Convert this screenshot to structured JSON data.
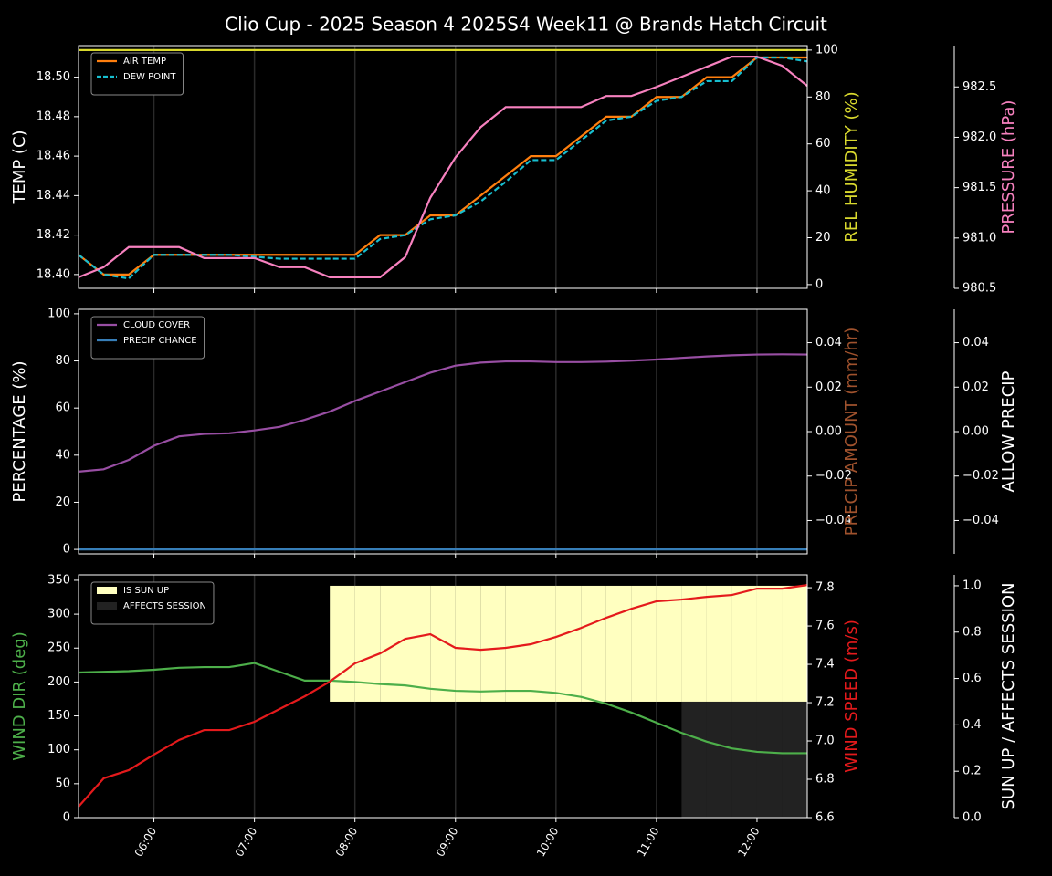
{
  "chart_data": [
    {
      "type": "line",
      "title": "Clio Cup - 2025 Season 4 2025S4 Week11 @ Brands Hatch Circuit",
      "ylabel": "TEMP (C)",
      "ylim": [
        18.393,
        18.516
      ],
      "yticks": [
        {
          "value": 18.4,
          "label": "18.40"
        },
        {
          "value": 18.42,
          "label": "18.42"
        },
        {
          "value": 18.44,
          "label": "18.44"
        },
        {
          "value": 18.46,
          "label": "18.46"
        },
        {
          "value": 18.48,
          "label": "18.48"
        },
        {
          "value": 18.5,
          "label": "18.50"
        }
      ],
      "y2label": "REL HUMIDITY (%)",
      "y2label_color": "#d9d92e",
      "y2lim": [
        -1.6,
        101.9
      ],
      "y2ticks": [
        0,
        20,
        40,
        60,
        80,
        100
      ],
      "y3label": "PRESSURE (hPa)",
      "y3label_color": "#f781bf",
      "y3lim": [
        980.5,
        982.91
      ],
      "y3ticks": [
        980.5,
        {
          "value": 981,
          "label": "981.0"
        },
        981.5,
        {
          "value": 982,
          "label": "982.0"
        },
        982.5
      ],
      "legend": "upper left",
      "series": [
        {
          "name": "AIR TEMP",
          "color": "#ff7f0e",
          "values": [
            18.41,
            18.4,
            18.4,
            18.41,
            18.41,
            18.41,
            18.41,
            18.41,
            18.41,
            18.41,
            18.41,
            18.41,
            18.42,
            18.42,
            18.43,
            18.43,
            18.44,
            18.45,
            18.46,
            18.46,
            18.47,
            18.48,
            18.48,
            18.49,
            18.49,
            18.5,
            18.5,
            18.51,
            18.51,
            18.51
          ]
        },
        {
          "name": "DEW POINT",
          "color": "#17becf",
          "dashed": true,
          "values": [
            18.41,
            18.4,
            18.398,
            18.41,
            18.41,
            18.41,
            18.41,
            18.409,
            18.408,
            18.408,
            18.408,
            18.408,
            18.418,
            18.42,
            18.428,
            18.43,
            18.437,
            18.447,
            18.458,
            18.458,
            18.468,
            18.478,
            18.48,
            18.488,
            18.49,
            18.498,
            18.498,
            18.51,
            18.51,
            18.508
          ]
        },
        {
          "axis": "y2",
          "color": "#d9d92e",
          "values": [
            100,
            100,
            100,
            100,
            100,
            100,
            100,
            100,
            100,
            100,
            100,
            100,
            100,
            100,
            100,
            100,
            100,
            100,
            100,
            100,
            100,
            100,
            100,
            100,
            100,
            100,
            100,
            100,
            100,
            100
          ]
        },
        {
          "axis": "y3",
          "color": "#f781bf",
          "values": [
            980.61,
            980.71,
            980.91,
            980.91,
            980.91,
            980.8,
            980.8,
            980.8,
            980.71,
            980.71,
            980.61,
            980.61,
            980.61,
            980.81,
            981.4,
            981.8,
            982.1,
            982.3,
            982.3,
            982.3,
            982.3,
            982.41,
            982.41,
            982.5,
            982.6,
            982.7,
            982.8,
            982.8,
            982.71,
            982.51
          ]
        }
      ]
    },
    {
      "type": "line",
      "ylabel": "PERCENTAGE (%)",
      "ylim": [
        -1.9,
        101.9
      ],
      "yticks": [
        0,
        20,
        40,
        60,
        80,
        100
      ],
      "y2label": "PRECIP AMOUNT (mm/hr)",
      "y2label_color": "#a0522d",
      "y2lim": [
        -0.055,
        0.055
      ],
      "y2ticks": [
        {
          "value": -0.04,
          "label": "−0.04"
        },
        {
          "value": -0.02,
          "label": "−0.02"
        },
        {
          "value": 0,
          "label": "0.00"
        },
        0.02,
        0.04
      ],
      "y3label": "ALLOW PRECIP",
      "y3lim": [
        -0.055,
        0.055
      ],
      "y3ticks": [
        {
          "value": -0.04,
          "label": "−0.04"
        },
        {
          "value": -0.02,
          "label": "−0.02"
        },
        {
          "value": 0,
          "label": "0.00"
        },
        0.02,
        0.04
      ],
      "legend": "upper left",
      "series": [
        {
          "name": "CLOUD COVER",
          "color": "#984ea3",
          "values": [
            33,
            34,
            38,
            44,
            48,
            49,
            49.3,
            50.5,
            52,
            55,
            58.5,
            63,
            67,
            71,
            75,
            78,
            79.3,
            79.8,
            79.8,
            79.5,
            79.5,
            79.7,
            80.1,
            80.6,
            81.3,
            81.9,
            82.4,
            82.7,
            82.8,
            82.7
          ]
        },
        {
          "name": "PRECIP CHANCE",
          "color": "#377eb8",
          "values": [
            0,
            0,
            0,
            0,
            0,
            0,
            0,
            0,
            0,
            0,
            0,
            0,
            0,
            0,
            0,
            0,
            0,
            0,
            0,
            0,
            0,
            0,
            0,
            0,
            0,
            0,
            0,
            0,
            0,
            0
          ]
        }
      ]
    },
    {
      "type": "line",
      "categories": [
        null,
        null,
        null,
        "06:00",
        null,
        null,
        null,
        "07:00",
        null,
        null,
        null,
        "08:00",
        null,
        null,
        null,
        "09:00",
        null,
        null,
        null,
        "10:00",
        null,
        null,
        null,
        "11:00",
        null,
        null,
        null,
        "12:00",
        null,
        null
      ],
      "ylabel": "WIND DIR (deg)",
      "ylabel_color": "#4daf4a",
      "ylim": [
        0,
        358
      ],
      "yticks": [
        0,
        50,
        100,
        150,
        200,
        250,
        300,
        350
      ],
      "y2label": "WIND SPEED (m/s)",
      "y2label_color": "#e41a1c",
      "y2lim": [
        6.6,
        7.867
      ],
      "y2ticks": [
        6.6,
        6.8,
        {
          "value": 7,
          "label": "7.0"
        },
        7.2,
        7.4,
        7.6,
        7.8
      ],
      "y3label": "SUN UP / AFFECTS SESSION",
      "y3lim": [
        0,
        1.047
      ],
      "y3ticks": [
        {
          "value": 0,
          "label": "0.0"
        },
        0.2,
        0.4,
        0.6,
        0.8,
        {
          "value": 1,
          "label": "1.0"
        }
      ],
      "legend": "upper left",
      "series": [
        {
          "name": "IS SUN UP",
          "type": "fill",
          "axis": "y3",
          "color": "#ffffc0",
          "values": [
            0,
            0,
            0,
            0,
            0,
            0,
            0,
            0,
            0,
            0,
            1,
            1,
            1,
            1,
            1,
            1,
            1,
            1,
            1,
            1,
            1,
            1,
            1,
            1,
            1,
            1,
            1,
            1,
            1,
            1
          ]
        },
        {
          "name": "AFFECTS SESSION",
          "type": "fill",
          "axis": "y3",
          "color": "#222222",
          "values": [
            0,
            0,
            0,
            0,
            0,
            0,
            0,
            0,
            0,
            0,
            0,
            0,
            0,
            0,
            0,
            0,
            0,
            0,
            0,
            0,
            0,
            0,
            0,
            0,
            1,
            1,
            1,
            1,
            1,
            1
          ]
        },
        {
          "color": "#4daf4a",
          "values": [
            214,
            215,
            216,
            218,
            221,
            222,
            222,
            228,
            215,
            202,
            202,
            200,
            197,
            195,
            190,
            187,
            186,
            187,
            187,
            184,
            178,
            168,
            155,
            140,
            125,
            112,
            102,
            97,
            95,
            95
          ]
        },
        {
          "axis": "y2",
          "color": "#e41a1c",
          "values": [
            6.657,
            6.805,
            6.848,
            6.929,
            7.005,
            7.057,
            7.057,
            7.1,
            7.167,
            7.233,
            7.31,
            7.405,
            7.457,
            7.533,
            7.557,
            7.486,
            7.476,
            7.486,
            7.505,
            7.543,
            7.59,
            7.643,
            7.69,
            7.729,
            7.738,
            7.752,
            7.762,
            7.795,
            7.795,
            7.814
          ]
        }
      ]
    }
  ]
}
